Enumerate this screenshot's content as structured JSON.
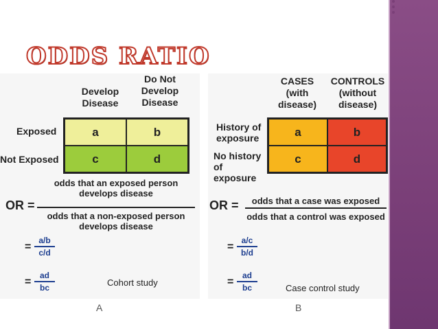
{
  "title": "ODDS RATIO",
  "colors": {
    "sidebar": "#7a3f78",
    "title_outline": "#c0392b",
    "cohort_light": "#efef9a",
    "cohort_dark": "#9ccc3c",
    "case_yellow": "#f7b51c",
    "case_red": "#e8452a"
  },
  "panel_a": {
    "col_headers": [
      "Develop Disease",
      "Do Not Develop Disease"
    ],
    "row_labels": [
      "Exposed",
      "Not Exposed"
    ],
    "cells": [
      "a",
      "b",
      "c",
      "d"
    ],
    "or_label": "OR =",
    "numerator_line1": "odds that an exposed person",
    "numerator_line2": "develops disease",
    "denominator_line1": "odds that a non-exposed person",
    "denominator_line2": "develops disease",
    "eq1_num": "a/b",
    "eq1_den": "c/d",
    "eq2_num": "ad",
    "eq2_den": "bc",
    "equals": "=",
    "caption": "Cohort study",
    "letter": "A"
  },
  "panel_b": {
    "col_headers": [
      "CASES (with disease)",
      "CONTROLS (without disease)"
    ],
    "row_labels": [
      "History of exposure",
      "No history of exposure"
    ],
    "cells": [
      "a",
      "b",
      "c",
      "d"
    ],
    "or_label": "OR =",
    "numerator": "odds that a case was exposed",
    "denominator": "odds that a control was exposed",
    "eq1_num": "a/c",
    "eq1_den": "b/d",
    "eq2_num": "ad",
    "eq2_den": "bc",
    "equals": "=",
    "caption": "Case control study",
    "letter": "B"
  }
}
